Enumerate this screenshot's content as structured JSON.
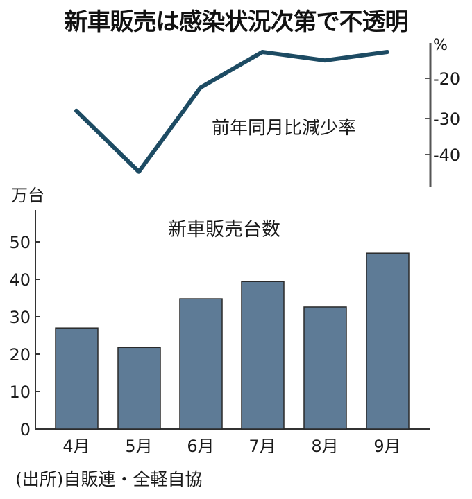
{
  "title": "新車販売は感染状況次第で不透明",
  "source": "(出所)自販連・全軽自協",
  "colors": {
    "line": "#1d4b63",
    "bar": "#5e7b96",
    "bar_border": "#2a2a2a",
    "axis": "#555555"
  },
  "chart_data": [
    {
      "type": "line",
      "title": "前年同月比減少率",
      "ylabel": "%",
      "axis_position": "right",
      "categories": [
        "4月",
        "5月",
        "6月",
        "7月",
        "8月",
        "9月"
      ],
      "values": [
        -28.5,
        -44.5,
        -22.4,
        -13.1,
        -15.3,
        -13.1
      ],
      "yticks": [
        -20,
        -30,
        -40
      ],
      "ylim": [
        -48,
        -10
      ],
      "grid": false
    },
    {
      "type": "bar",
      "title": "新車販売台数",
      "ylabel": "万台",
      "xlabel": "",
      "categories": [
        "4月",
        "5月",
        "6月",
        "7月",
        "8月",
        "9月"
      ],
      "values": [
        27.0,
        21.8,
        34.8,
        39.4,
        32.6,
        47.0
      ],
      "yticks": [
        0,
        10,
        20,
        30,
        40,
        50
      ],
      "ylim": [
        0,
        55
      ],
      "grid": false
    }
  ],
  "labels": {
    "line_title": "前年同月比減少率",
    "line_unit": "%",
    "line_ticks": [
      "-20",
      "-30",
      "-40"
    ],
    "bar_title": "新車販売台数",
    "bar_unit": "万台",
    "bar_ticks": [
      "0",
      "10",
      "20",
      "30",
      "40",
      "50"
    ],
    "months": [
      "4月",
      "5月",
      "6月",
      "7月",
      "8月",
      "9月"
    ]
  }
}
